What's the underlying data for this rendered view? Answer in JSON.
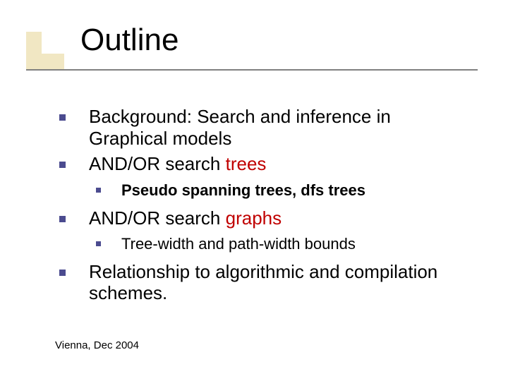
{
  "colors": {
    "bullet": "#4b4b8f",
    "title_box_fill": "#f1e7c3",
    "rule": "#808080",
    "accent_red": "#c00000",
    "text": "#000000",
    "background": "#ffffff"
  },
  "typography": {
    "title_fontsize": 44,
    "lvl1_fontsize": 26,
    "lvl2_fontsize": 22,
    "footer_fontsize": 15,
    "font_family": "Verdana"
  },
  "title": "Outline",
  "items": [
    {
      "text": "Background: Search and inference in Graphical models"
    },
    {
      "text_pre": "AND/OR search ",
      "text_accent": "trees",
      "sub": {
        "text": "Pseudo spanning trees, dfs trees",
        "bold": true
      }
    },
    {
      "text_pre": "AND/OR search ",
      "text_accent": "graphs",
      "sub": {
        "text": "Tree-width and path-width bounds",
        "bold": false
      }
    },
    {
      "text": "Relationship to algorithmic and compilation schemes."
    }
  ],
  "footer": "Vienna, Dec 2004"
}
